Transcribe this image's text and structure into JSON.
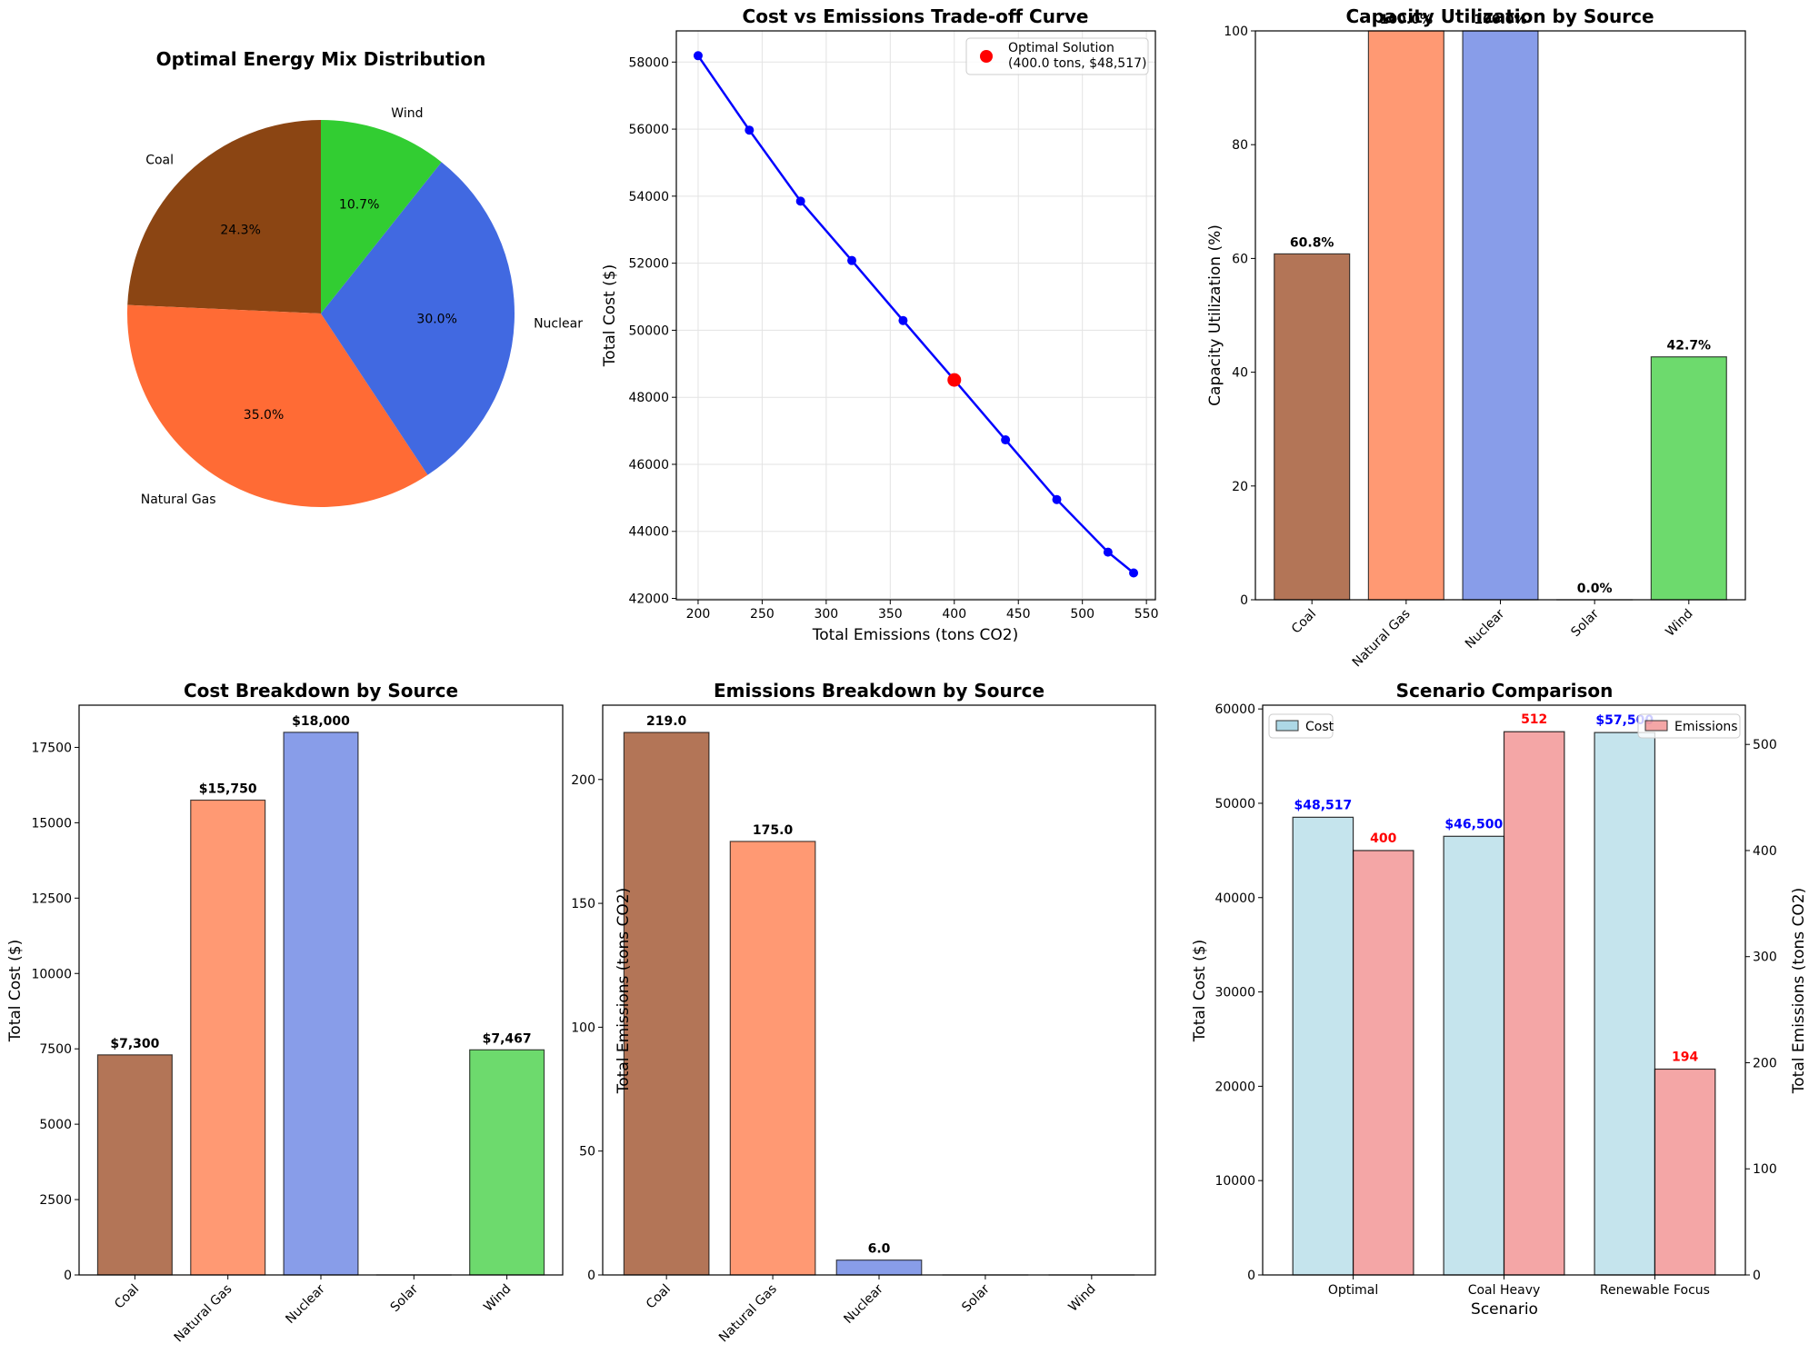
{
  "chart_data": [
    {
      "id": "pie",
      "type": "pie",
      "title": "Optimal Energy Mix Distribution",
      "labels": [
        "Coal",
        "Natural Gas",
        "Nuclear",
        "Wind"
      ],
      "values": [
        24.3,
        35.0,
        30.0,
        10.7
      ],
      "pct_labels": [
        "24.3%",
        "35.0%",
        "30.0%",
        "10.7%"
      ],
      "colors": [
        "#8B4513",
        "#FF6B35",
        "#4169E1",
        "#32CD32"
      ],
      "start_angle_deg": 90,
      "direction": "counterclockwise"
    },
    {
      "id": "tradeoff",
      "type": "line",
      "title": "Cost vs Emissions Trade-off Curve",
      "xlabel": "Total Emissions (tons CO2)",
      "ylabel": "Total Cost ($)",
      "x": [
        200,
        240,
        280,
        320,
        360,
        440,
        480,
        520,
        540
      ],
      "y": [
        58190,
        55970,
        53850,
        52080,
        50290,
        46730,
        44950,
        43380,
        42760
      ],
      "line_x": [
        200,
        240,
        280,
        320,
        360,
        400,
        440,
        480,
        520,
        540
      ],
      "line_y": [
        58190,
        55970,
        53850,
        52080,
        50290,
        48517,
        46730,
        44950,
        43380,
        42760
      ],
      "xlim": [
        183,
        557
      ],
      "ylim": [
        41960,
        58930
      ],
      "xticks": [
        200,
        250,
        300,
        350,
        400,
        450,
        500,
        550
      ],
      "yticks": [
        42000,
        44000,
        46000,
        48000,
        50000,
        52000,
        54000,
        56000,
        58000
      ],
      "grid": true,
      "line_color": "#0000FF",
      "highlight": {
        "x": 400.0,
        "y": 48517,
        "color": "#FF0000"
      },
      "legend": {
        "position": "top-right",
        "entries": [
          "Optimal Solution",
          "(400.0 tons, $48,517)"
        ]
      }
    },
    {
      "id": "capacity",
      "type": "bar",
      "title": "Capacity Utilization by Source",
      "xlabel": "",
      "ylabel": "Capacity Utilization (%)",
      "categories": [
        "Coal",
        "Natural Gas",
        "Nuclear",
        "Solar",
        "Wind"
      ],
      "values": [
        60.8,
        100.0,
        100.0,
        0.0,
        42.7
      ],
      "value_labels": [
        "60.8%",
        "100.0%",
        "100.0%",
        "0.0%",
        "42.7%"
      ],
      "colors": [
        "#A0522D",
        "#FF7F50",
        "#6A84E3",
        "#FFD700",
        "#49D149"
      ],
      "ylim": [
        0,
        100
      ],
      "yticks": [
        0,
        20,
        40,
        60,
        80,
        100
      ]
    },
    {
      "id": "cost",
      "type": "bar",
      "title": "Cost Breakdown by Source",
      "xlabel": "",
      "ylabel": "Total Cost ($)",
      "categories": [
        "Coal",
        "Natural Gas",
        "Nuclear",
        "Solar",
        "Wind"
      ],
      "values": [
        7300,
        15750,
        18000,
        0,
        7467
      ],
      "value_labels": [
        "$7,300",
        "$15,750",
        "$18,000",
        "",
        "$7,467"
      ],
      "colors": [
        "#A0522D",
        "#FF7F50",
        "#6A84E3",
        "#FFD700",
        "#49D149"
      ],
      "ylim": [
        0,
        18900
      ],
      "yticks": [
        0,
        2500,
        5000,
        7500,
        10000,
        12500,
        15000,
        17500
      ]
    },
    {
      "id": "emissions",
      "type": "bar",
      "title": "Emissions Breakdown by Source",
      "xlabel": "",
      "ylabel": "Total Emissions (tons CO2)",
      "categories": [
        "Coal",
        "Natural Gas",
        "Nuclear",
        "Solar",
        "Wind"
      ],
      "values": [
        219.0,
        175.0,
        6.0,
        0.0,
        0.0
      ],
      "value_labels": [
        "219.0",
        "175.0",
        "6.0",
        "",
        ""
      ],
      "colors": [
        "#A0522D",
        "#FF7F50",
        "#6A84E3",
        "#FFD700",
        "#49D149"
      ],
      "ylim": [
        0,
        230
      ],
      "yticks": [
        0,
        50,
        100,
        150,
        200
      ]
    },
    {
      "id": "scenario",
      "type": "bar",
      "title": "Scenario Comparison",
      "xlabel": "Scenario",
      "ylabel": "Total Cost ($)",
      "ylabel_right": "Total Emissions (tons CO2)",
      "categories": [
        "Optimal",
        "Coal Heavy",
        "Renewable Focus"
      ],
      "series": [
        {
          "name": "Cost",
          "axis": "left",
          "values": [
            48517,
            46500,
            57500
          ],
          "value_labels": [
            "$48,517",
            "$46,500",
            "$57,500"
          ],
          "color": "#ADD8E6",
          "label_color": "#0000FF"
        },
        {
          "name": "Emissions",
          "axis": "right",
          "values": [
            400,
            512,
            194
          ],
          "value_labels": [
            "400",
            "512",
            "194"
          ],
          "color": "#F08080",
          "label_color": "#FF0000"
        }
      ],
      "ylim": [
        0,
        60400
      ],
      "ylim_right": [
        0,
        537
      ],
      "yticks": [
        0,
        10000,
        20000,
        30000,
        40000,
        50000,
        60000
      ],
      "yticks_right": [
        0,
        100,
        200,
        300,
        400,
        500
      ],
      "ylabel_color": "#0000FF",
      "ylabel_right_color": "#FF0000",
      "legend_left": {
        "position": "top-left",
        "label": "Cost"
      },
      "legend_right": {
        "position": "top-right",
        "label": "Emissions"
      }
    }
  ]
}
